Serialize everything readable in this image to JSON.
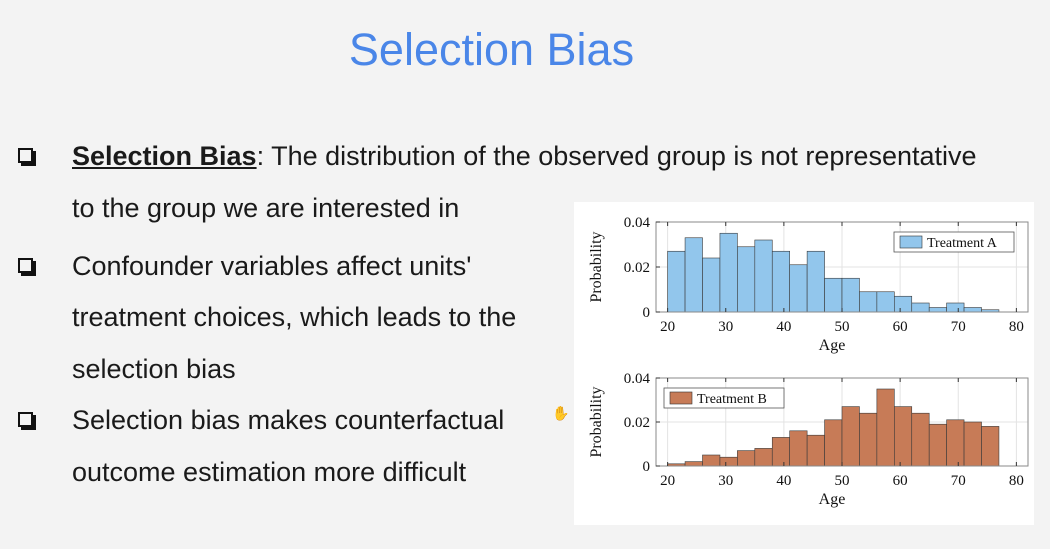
{
  "slide": {
    "title": "Selection Bias",
    "bullets": [
      {
        "term": "Selection Bias",
        "line1": ": The distribution of the observed group is not representative",
        "line2": "to the group we are interested in"
      },
      {
        "line1": "Confounder variables affect units'",
        "line2": "treatment choices, which leads to the",
        "line3": "selection bias"
      },
      {
        "line1": "Selection bias makes counterfactual",
        "line2": "outcome estimation more difficult"
      }
    ]
  },
  "colors": {
    "title": "#4a86e8",
    "treatment_a": "#92c6ec",
    "treatment_b": "#c77b57"
  },
  "icons": {
    "bullet": "checkbox-square-icon",
    "cursor": "hand-cursor-icon"
  },
  "chart_data": [
    {
      "type": "bar",
      "title": "",
      "xlabel": "Age",
      "ylabel": "Probability",
      "xlim": [
        18,
        82
      ],
      "ylim": [
        0,
        0.04
      ],
      "xticks": [
        20,
        30,
        40,
        50,
        60,
        70,
        80
      ],
      "yticks": [
        0,
        0.02,
        0.04
      ],
      "ytick_labels": [
        "0",
        "0.02",
        "0.04"
      ],
      "bin_start": 20,
      "bin_width": 3,
      "series": [
        {
          "name": "Treatment A",
          "values": [
            0.027,
            0.033,
            0.024,
            0.035,
            0.029,
            0.032,
            0.027,
            0.021,
            0.027,
            0.015,
            0.015,
            0.009,
            0.009,
            0.007,
            0.004,
            0.002,
            0.004,
            0.002,
            0.001
          ]
        }
      ],
      "legend": "top-right",
      "color": "#92c6ec"
    },
    {
      "type": "bar",
      "title": "",
      "xlabel": "Age",
      "ylabel": "Probability",
      "xlim": [
        18,
        82
      ],
      "ylim": [
        0,
        0.04
      ],
      "xticks": [
        20,
        30,
        40,
        50,
        60,
        70,
        80
      ],
      "yticks": [
        0,
        0.02,
        0.04
      ],
      "ytick_labels": [
        "0",
        "0.02",
        "0.04"
      ],
      "bin_start": 20,
      "bin_width": 3,
      "series": [
        {
          "name": "Treatment B",
          "values": [
            0.001,
            0.002,
            0.005,
            0.004,
            0.007,
            0.008,
            0.013,
            0.016,
            0.014,
            0.021,
            0.027,
            0.024,
            0.035,
            0.027,
            0.024,
            0.019,
            0.021,
            0.02,
            0.018
          ]
        }
      ],
      "legend": "top-left",
      "color": "#c77b57"
    }
  ]
}
